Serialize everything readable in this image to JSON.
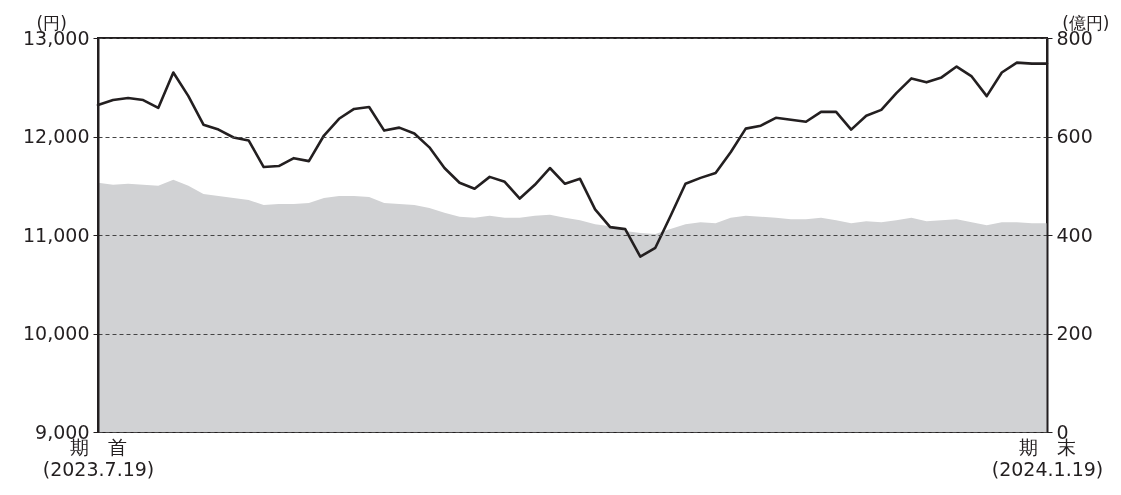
{
  "chart_data": {
    "type": "line",
    "categories": [
      "期　首\n(2023.7.19)",
      null,
      null,
      null,
      null,
      null,
      null,
      null,
      null,
      null,
      null,
      null,
      null,
      null,
      null,
      null,
      null,
      null,
      null,
      null,
      null,
      null,
      null,
      null,
      null,
      null,
      null,
      null,
      null,
      null,
      null,
      null,
      null,
      null,
      null,
      null,
      null,
      null,
      null,
      null,
      null,
      null,
      null,
      null,
      null,
      null,
      null,
      null,
      null,
      null,
      null,
      null,
      null,
      null,
      null,
      null,
      null,
      null,
      null,
      null,
      null,
      null,
      null,
      "期　末\n(2024.1.19)"
    ],
    "ylabel": "(円)",
    "y2label": "(億円)",
    "ylim": [
      9000,
      13000
    ],
    "yticks": [
      {
        "value": 9000,
        "label": "9,000"
      },
      {
        "value": 10000,
        "label": "10,000"
      },
      {
        "value": 11000,
        "label": "11,000"
      },
      {
        "value": 12000,
        "label": "12,000"
      },
      {
        "value": 13000,
        "label": "13,000"
      }
    ],
    "y2lim": [
      0,
      800
    ],
    "y2ticks": [
      0,
      200,
      400,
      600,
      800
    ],
    "grid": "y",
    "series": [
      {
        "type": "area",
        "axis": "y2",
        "color": "#d1d2d4",
        "values": [
          506,
          502,
          504,
          502,
          500,
          512,
          500,
          483,
          479,
          475,
          471,
          461,
          463,
          463,
          465,
          475,
          479,
          479,
          477,
          465,
          463,
          461,
          455,
          445,
          437,
          435,
          439,
          435,
          435,
          439,
          441,
          435,
          430,
          422,
          418,
          408,
          404,
          402,
          412,
          422,
          426,
          424,
          435,
          439,
          437,
          435,
          432,
          432,
          435,
          430,
          424,
          428,
          426,
          430,
          435,
          428,
          430,
          432,
          426,
          420,
          426,
          426,
          424,
          424
        ]
      },
      {
        "type": "line",
        "color": "#231f20",
        "values": [
          12320,
          12370,
          12390,
          12370,
          12290,
          12650,
          12410,
          12120,
          12070,
          11990,
          11960,
          11690,
          11700,
          11780,
          11750,
          12010,
          12180,
          12280,
          12300,
          12060,
          12090,
          12030,
          11890,
          11680,
          11530,
          11470,
          11590,
          11540,
          11370,
          11510,
          11680,
          11520,
          11570,
          11260,
          11080,
          11060,
          10780,
          10870,
          11190,
          11520,
          11580,
          11630,
          11840,
          12080,
          12110,
          12190,
          12170,
          12150,
          12250,
          12250,
          12070,
          12210,
          12270,
          12440,
          12590,
          12550,
          12600,
          12710,
          12610,
          12410,
          12650,
          12750,
          12740,
          12740
        ]
      }
    ]
  }
}
